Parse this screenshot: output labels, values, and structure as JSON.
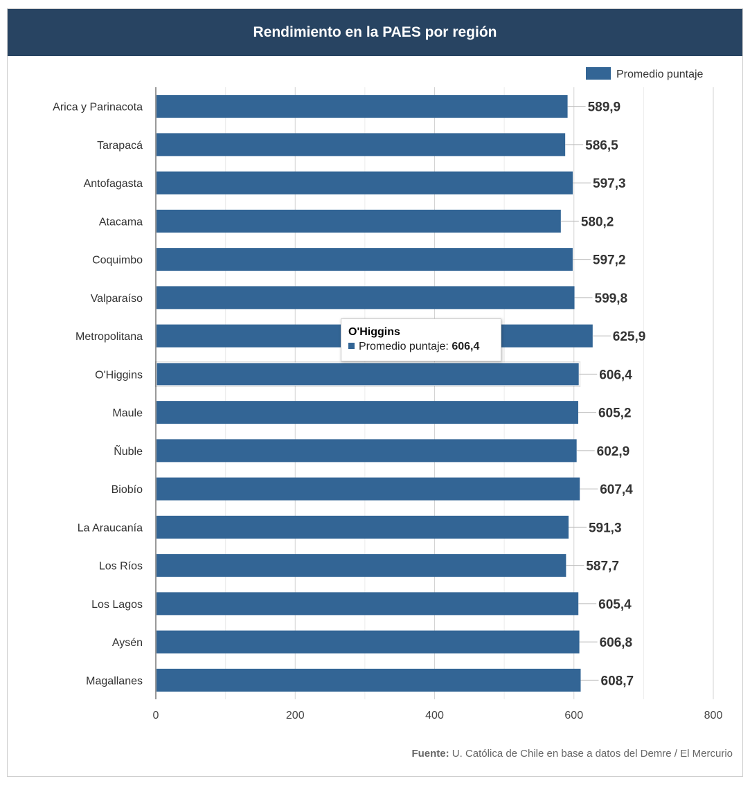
{
  "title": "Rendimiento en la PAES por región",
  "legend": {
    "label": "Promedio puntaje",
    "color": "#336595"
  },
  "source": {
    "prefix": "Fuente:",
    "text": "U. Católica de Chile en base a datos del Demre / El Mercurio"
  },
  "tooltip": {
    "title": "O'Higgins",
    "series_label": "Promedio puntaje:",
    "value": "606,4"
  },
  "colors": {
    "header": "#284462",
    "bar": "#336595",
    "bar_highlight": "#336595"
  },
  "chart_data": {
    "type": "bar",
    "orientation": "horizontal",
    "title": "Rendimiento en la PAES por región",
    "xlabel": "",
    "ylabel": "",
    "xlim": [
      0,
      800
    ],
    "ticks": [
      "0",
      "200",
      "400",
      "600",
      "800"
    ],
    "tick_values": [
      0,
      200,
      400,
      600,
      800
    ],
    "grid": true,
    "legend_position": "top-right",
    "highlighted_category": "O'Higgins",
    "categories": [
      "Arica y Parinacota",
      "Tarapacá",
      "Antofagasta",
      "Atacama",
      "Coquimbo",
      "Valparaíso",
      "Metropolitana",
      "O'Higgins",
      "Maule",
      "Ñuble",
      "Biobío",
      "La Araucanía",
      "Los Ríos",
      "Los Lagos",
      "Aysén",
      "Magallanes"
    ],
    "series": [
      {
        "name": "Promedio puntaje",
        "values": [
          589.9,
          586.5,
          597.3,
          580.2,
          597.2,
          599.8,
          625.9,
          606.4,
          605.2,
          602.9,
          607.4,
          591.3,
          587.7,
          605.4,
          606.8,
          608.7
        ],
        "labels": [
          "589,9",
          "586,5",
          "597,3",
          "580,2",
          "597,2",
          "599,8",
          "625,9",
          "606,4",
          "605,2",
          "602,9",
          "607,4",
          "591,3",
          "587,7",
          "605,4",
          "606,8",
          "608,7"
        ]
      }
    ]
  }
}
